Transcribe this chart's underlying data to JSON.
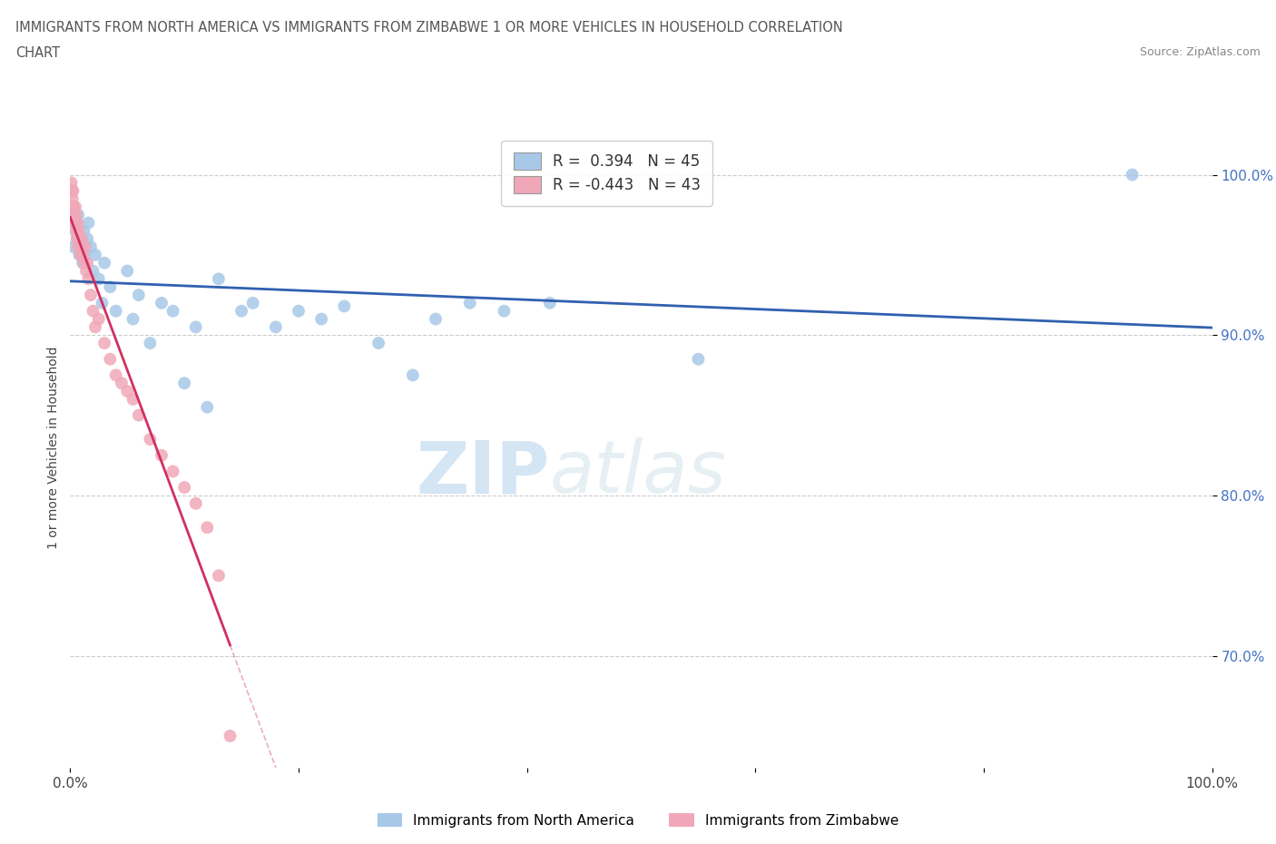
{
  "title_line1": "IMMIGRANTS FROM NORTH AMERICA VS IMMIGRANTS FROM ZIMBABWE 1 OR MORE VEHICLES IN HOUSEHOLD CORRELATION",
  "title_line2": "CHART",
  "source_text": "Source: ZipAtlas.com",
  "ylabel": "1 or more Vehicles in Household",
  "xlim": [
    0.0,
    100.0
  ],
  "ylim": [
    63.0,
    103.0
  ],
  "y_tick_labels": [
    "70.0%",
    "80.0%",
    "90.0%",
    "100.0%"
  ],
  "y_ticks": [
    70.0,
    80.0,
    90.0,
    100.0
  ],
  "blue_r": 0.394,
  "blue_n": 45,
  "pink_r": -0.443,
  "pink_n": 43,
  "blue_color": "#a8c8e8",
  "pink_color": "#f0a8b8",
  "blue_line_color": "#3060b0",
  "pink_line_color": "#d03060",
  "watermark_zip": "ZIP",
  "watermark_atlas": "atlas",
  "background_color": "#ffffff",
  "grid_color": "#cccccc",
  "north_america_x": [
    0.3,
    0.4,
    0.5,
    0.6,
    0.7,
    0.8,
    0.9,
    1.0,
    1.1,
    1.2,
    1.3,
    1.5,
    1.6,
    1.8,
    2.0,
    2.2,
    2.5,
    2.8,
    3.0,
    3.5,
    4.0,
    5.0,
    5.5,
    6.0,
    7.0,
    8.0,
    9.0,
    10.0,
    11.0,
    12.0,
    13.0,
    15.0,
    16.0,
    18.0,
    20.0,
    22.0,
    24.0,
    27.0,
    30.0,
    32.0,
    35.0,
    38.0,
    42.0,
    55.0,
    93.0
  ],
  "north_america_y": [
    95.5,
    96.5,
    97.0,
    96.0,
    97.5,
    95.0,
    96.0,
    95.5,
    94.5,
    96.5,
    95.0,
    96.0,
    97.0,
    95.5,
    94.0,
    95.0,
    93.5,
    92.0,
    94.5,
    93.0,
    91.5,
    94.0,
    91.0,
    92.5,
    89.5,
    92.0,
    91.5,
    87.0,
    90.5,
    85.5,
    93.5,
    91.5,
    92.0,
    90.5,
    91.5,
    91.0,
    91.8,
    89.5,
    87.5,
    91.0,
    92.0,
    91.5,
    92.0,
    88.5,
    100.0
  ],
  "zimbabwe_x": [
    0.1,
    0.15,
    0.2,
    0.25,
    0.3,
    0.35,
    0.4,
    0.45,
    0.5,
    0.55,
    0.6,
    0.65,
    0.7,
    0.75,
    0.8,
    0.85,
    0.9,
    1.0,
    1.1,
    1.2,
    1.3,
    1.4,
    1.5,
    1.6,
    1.8,
    2.0,
    2.2,
    2.5,
    3.0,
    3.5,
    4.0,
    4.5,
    5.0,
    5.5,
    6.0,
    7.0,
    8.0,
    9.0,
    10.0,
    11.0,
    12.0,
    13.0,
    14.0
  ],
  "zimbabwe_y": [
    99.5,
    99.0,
    98.5,
    99.0,
    98.0,
    97.5,
    97.0,
    98.0,
    97.5,
    96.5,
    96.0,
    97.0,
    95.5,
    96.5,
    96.0,
    95.5,
    95.0,
    96.0,
    95.0,
    94.5,
    95.5,
    94.0,
    94.5,
    93.5,
    92.5,
    91.5,
    90.5,
    91.0,
    89.5,
    88.5,
    87.5,
    87.0,
    86.5,
    86.0,
    85.0,
    83.5,
    82.5,
    81.5,
    80.5,
    79.5,
    78.0,
    75.0,
    65.0
  ]
}
